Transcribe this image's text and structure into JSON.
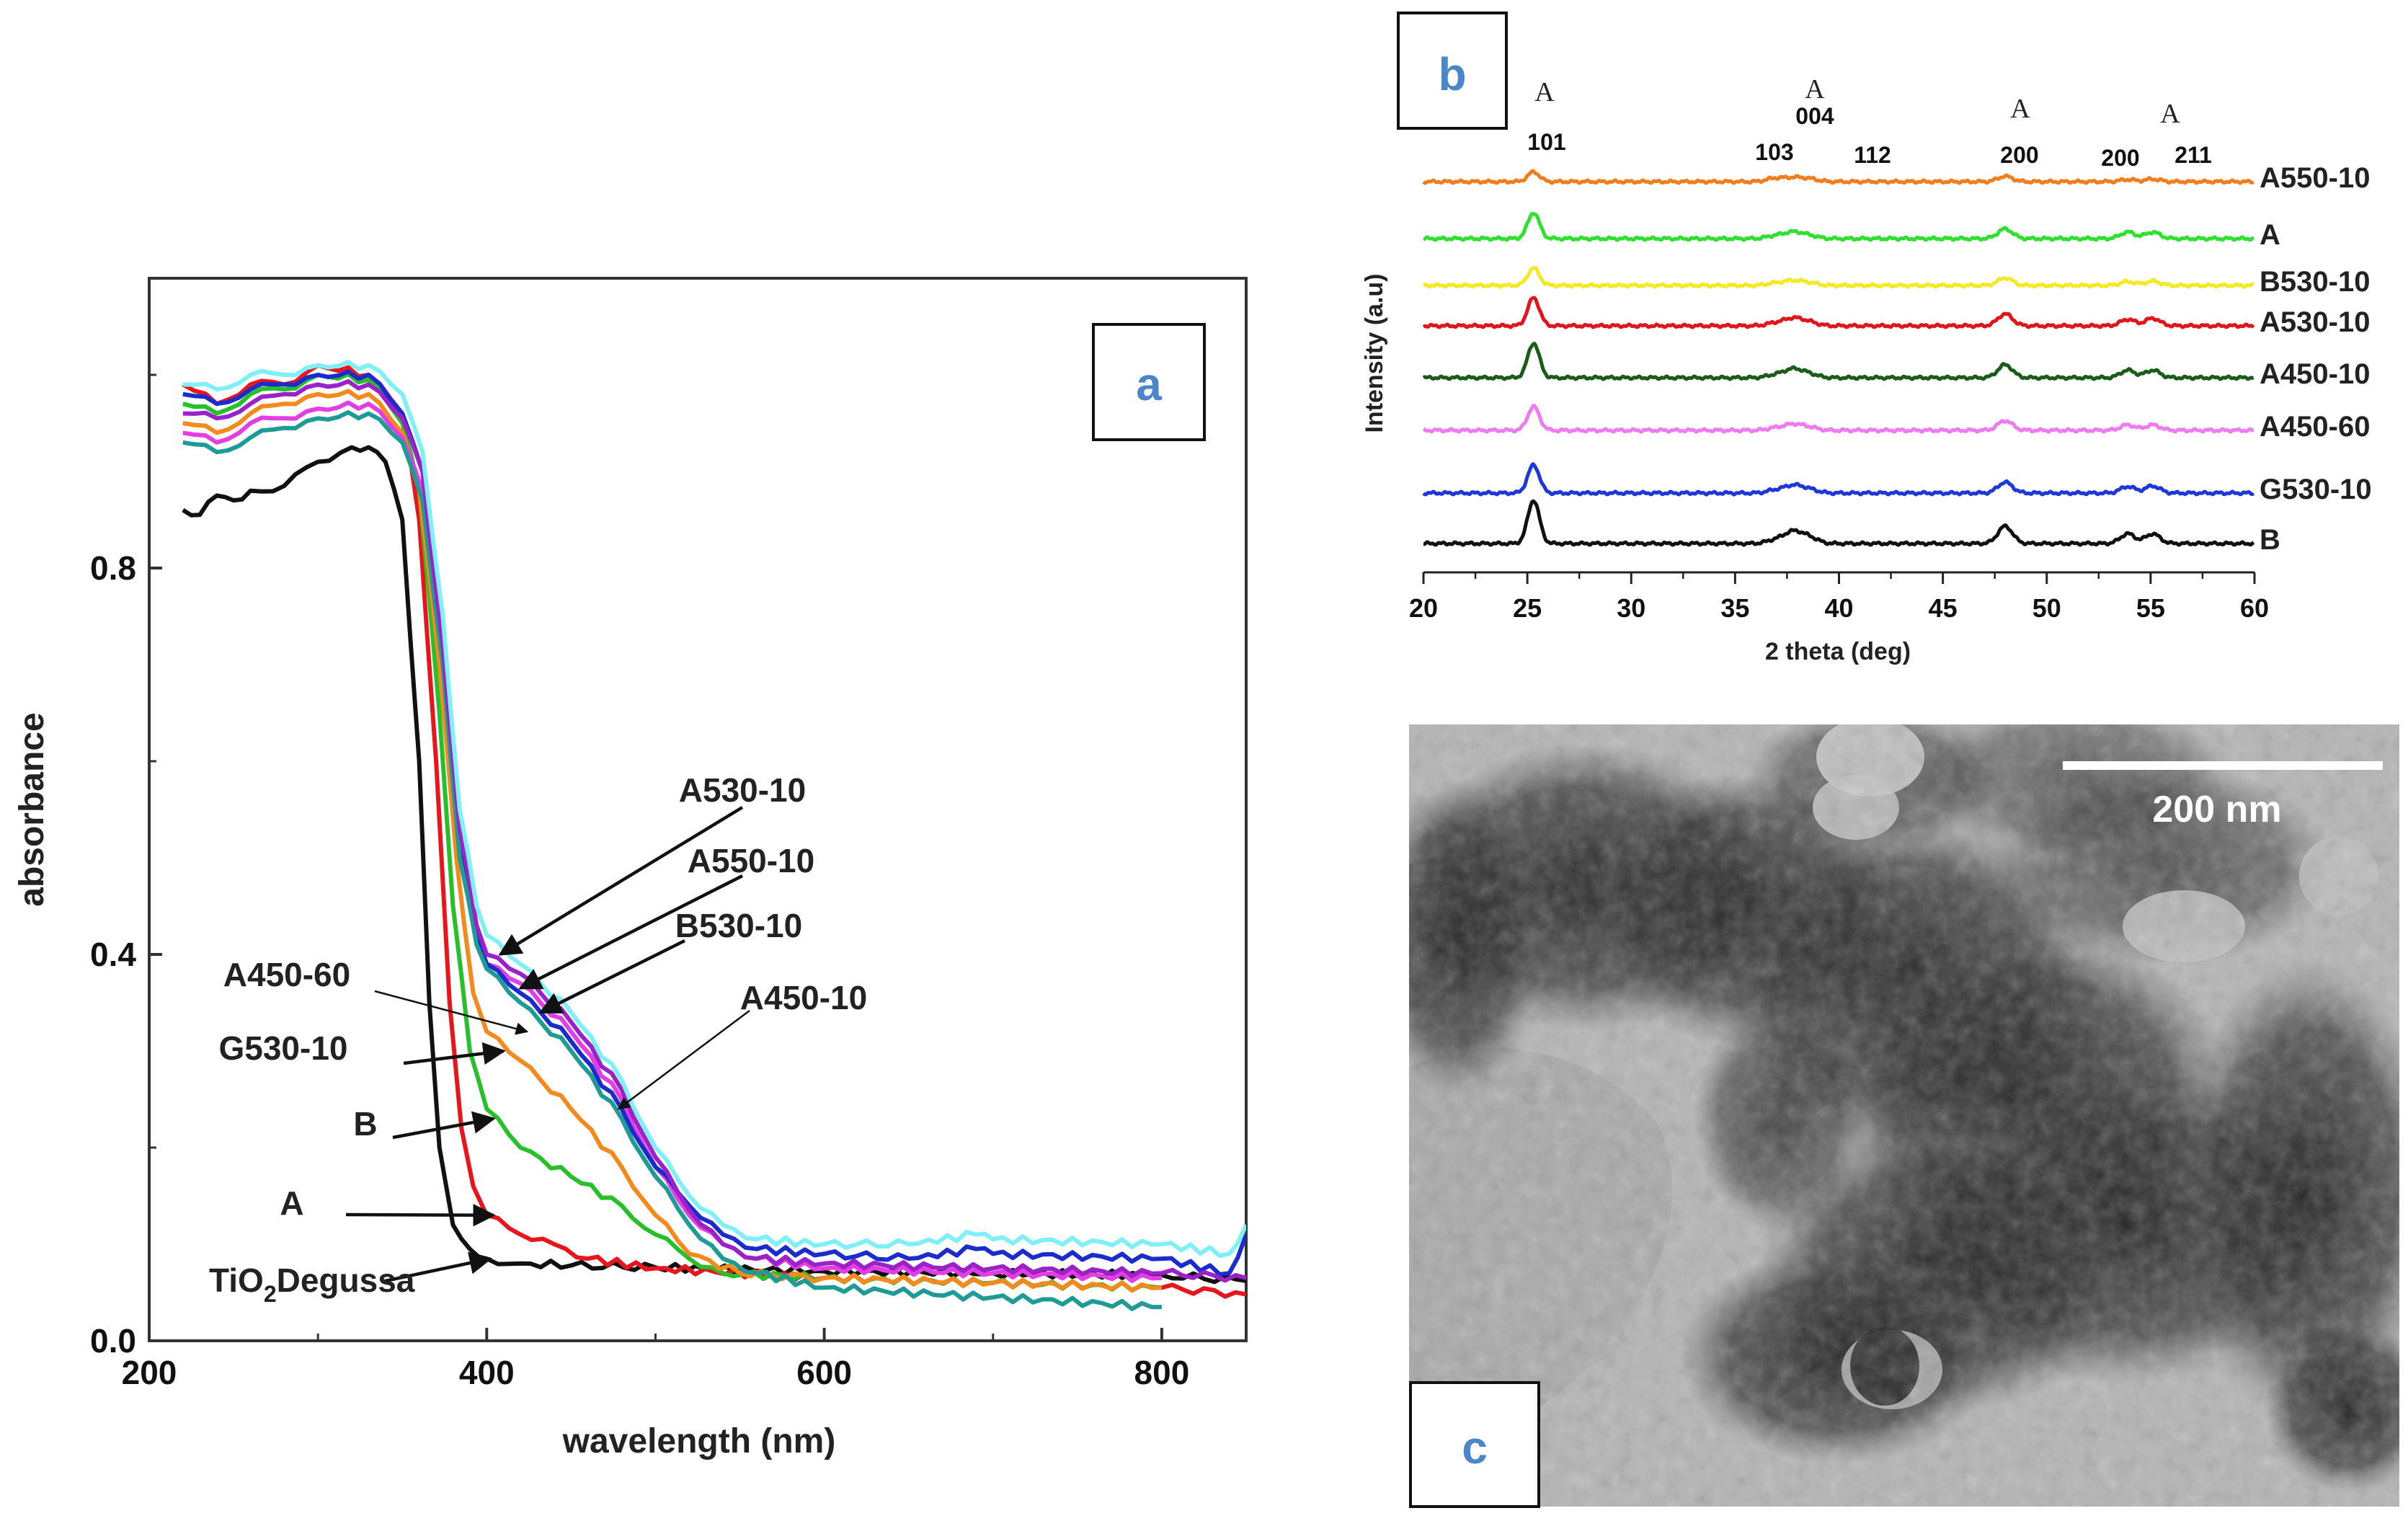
{
  "panels": {
    "a": {
      "letter": "a"
    },
    "b": {
      "letter": "b"
    },
    "c": {
      "letter": "c",
      "scale_label": "200 nm"
    }
  },
  "chart_data": [
    {
      "id": "uv-vis",
      "type": "line",
      "title": "",
      "xlabel": "wavelength (nm)",
      "ylabel": "absorbance",
      "xlim": [
        200,
        850
      ],
      "ylim": [
        0,
        1.1
      ],
      "xticks": [
        200,
        400,
        600,
        800
      ],
      "yticks": [
        0.0,
        0.4,
        0.8
      ],
      "ytick_labels": [
        "0.0",
        "0.4",
        "0.8"
      ],
      "series": [
        {
          "name": "TiO2Degussa",
          "color": "#111111",
          "points": [
            [
              220,
              0.86
            ],
            [
              230,
              0.855
            ],
            [
              240,
              0.875
            ],
            [
              250,
              0.87
            ],
            [
              260,
              0.88
            ],
            [
              280,
              0.885
            ],
            [
              300,
              0.91
            ],
            [
              320,
              0.925
            ],
            [
              330,
              0.925
            ],
            [
              340,
              0.91
            ],
            [
              350,
              0.85
            ],
            [
              360,
              0.6
            ],
            [
              366,
              0.35
            ],
            [
              372,
              0.2
            ],
            [
              380,
              0.12
            ],
            [
              390,
              0.095
            ],
            [
              400,
              0.085
            ],
            [
              420,
              0.08
            ],
            [
              450,
              0.078
            ],
            [
              500,
              0.076
            ],
            [
              600,
              0.072
            ],
            [
              700,
              0.07
            ],
            [
              800,
              0.068
            ],
            [
              850,
              0.062
            ]
          ]
        },
        {
          "name": "A",
          "color": "#e8161c",
          "points": [
            [
              220,
              0.99
            ],
            [
              240,
              0.97
            ],
            [
              260,
              0.99
            ],
            [
              280,
              0.99
            ],
            [
              300,
              1.01
            ],
            [
              330,
              1.0
            ],
            [
              350,
              0.96
            ],
            [
              360,
              0.85
            ],
            [
              370,
              0.6
            ],
            [
              378,
              0.35
            ],
            [
              385,
              0.22
            ],
            [
              392,
              0.16
            ],
            [
              400,
              0.13
            ],
            [
              420,
              0.11
            ],
            [
              440,
              0.1
            ],
            [
              460,
              0.085
            ],
            [
              500,
              0.075
            ],
            [
              600,
              0.065
            ],
            [
              700,
              0.06
            ],
            [
              800,
              0.055
            ],
            [
              850,
              0.048
            ]
          ]
        },
        {
          "name": "B",
          "color": "#27c02a",
          "points": [
            [
              220,
              0.97
            ],
            [
              240,
              0.96
            ],
            [
              260,
              0.98
            ],
            [
              280,
              0.985
            ],
            [
              300,
              1.0
            ],
            [
              330,
              0.995
            ],
            [
              350,
              0.95
            ],
            [
              360,
              0.88
            ],
            [
              372,
              0.65
            ],
            [
              380,
              0.45
            ],
            [
              390,
              0.3
            ],
            [
              400,
              0.24
            ],
            [
              420,
              0.2
            ],
            [
              450,
              0.17
            ],
            [
              480,
              0.14
            ],
            [
              500,
              0.11
            ],
            [
              520,
              0.085
            ],
            [
              540,
              0.07
            ],
            [
              600,
              0.065
            ],
            [
              700,
              0.06
            ],
            [
              800,
              0.055
            ]
          ]
        },
        {
          "name": "G530-10",
          "color": "#f28a1c",
          "points": [
            [
              220,
              0.95
            ],
            [
              240,
              0.94
            ],
            [
              260,
              0.96
            ],
            [
              280,
              0.97
            ],
            [
              300,
              0.98
            ],
            [
              330,
              0.98
            ],
            [
              350,
              0.94
            ],
            [
              360,
              0.88
            ],
            [
              372,
              0.7
            ],
            [
              382,
              0.5
            ],
            [
              392,
              0.36
            ],
            [
              400,
              0.32
            ],
            [
              420,
              0.29
            ],
            [
              450,
              0.24
            ],
            [
              480,
              0.18
            ],
            [
              500,
              0.13
            ],
            [
              520,
              0.09
            ],
            [
              550,
              0.07
            ],
            [
              600,
              0.065
            ],
            [
              700,
              0.06
            ],
            [
              800,
              0.055
            ]
          ]
        },
        {
          "name": "A450-60",
          "color": "#e33ee3",
          "points": [
            [
              220,
              0.94
            ],
            [
              240,
              0.93
            ],
            [
              260,
              0.95
            ],
            [
              280,
              0.955
            ],
            [
              300,
              0.965
            ],
            [
              330,
              0.97
            ],
            [
              350,
              0.935
            ],
            [
              362,
              0.88
            ],
            [
              374,
              0.7
            ],
            [
              384,
              0.52
            ],
            [
              394,
              0.42
            ],
            [
              400,
              0.39
            ],
            [
              420,
              0.37
            ],
            [
              450,
              0.32
            ],
            [
              480,
              0.25
            ],
            [
              500,
              0.18
            ],
            [
              520,
              0.13
            ],
            [
              540,
              0.1
            ],
            [
              560,
              0.085
            ],
            [
              600,
              0.075
            ],
            [
              700,
              0.07
            ],
            [
              800,
              0.065
            ]
          ]
        },
        {
          "name": "A530-10",
          "color": "#1a2ccc",
          "points": [
            [
              220,
              0.98
            ],
            [
              240,
              0.97
            ],
            [
              260,
              0.985
            ],
            [
              280,
              0.99
            ],
            [
              300,
              1.0
            ],
            [
              330,
              1.0
            ],
            [
              350,
              0.96
            ],
            [
              362,
              0.9
            ],
            [
              374,
              0.72
            ],
            [
              384,
              0.52
            ],
            [
              394,
              0.42
            ],
            [
              400,
              0.39
            ],
            [
              420,
              0.36
            ],
            [
              450,
              0.31
            ],
            [
              480,
              0.24
            ],
            [
              500,
              0.18
            ],
            [
              520,
              0.14
            ],
            [
              540,
              0.11
            ],
            [
              560,
              0.095
            ],
            [
              600,
              0.09
            ],
            [
              650,
              0.085
            ],
            [
              690,
              0.095
            ],
            [
              700,
              0.09
            ],
            [
              800,
              0.085
            ],
            [
              840,
              0.07
            ],
            [
              850,
              0.11
            ]
          ]
        },
        {
          "name": "A550-10",
          "color": "#1f9b96",
          "points": [
            [
              220,
              0.93
            ],
            [
              240,
              0.92
            ],
            [
              260,
              0.935
            ],
            [
              280,
              0.945
            ],
            [
              300,
              0.955
            ],
            [
              330,
              0.96
            ],
            [
              350,
              0.93
            ],
            [
              362,
              0.87
            ],
            [
              374,
              0.7
            ],
            [
              384,
              0.5
            ],
            [
              394,
              0.41
            ],
            [
              400,
              0.385
            ],
            [
              420,
              0.35
            ],
            [
              450,
              0.3
            ],
            [
              480,
              0.23
            ],
            [
              500,
              0.17
            ],
            [
              520,
              0.12
            ],
            [
              540,
              0.085
            ],
            [
              560,
              0.07
            ],
            [
              600,
              0.055
            ],
            [
              700,
              0.045
            ],
            [
              800,
              0.035
            ]
          ]
        },
        {
          "name": "B530-10",
          "color": "#9a22c8",
          "points": [
            [
              220,
              0.96
            ],
            [
              240,
              0.955
            ],
            [
              260,
              0.97
            ],
            [
              280,
              0.98
            ],
            [
              300,
              0.99
            ],
            [
              330,
              0.99
            ],
            [
              350,
              0.955
            ],
            [
              362,
              0.9
            ],
            [
              374,
              0.72
            ],
            [
              384,
              0.53
            ],
            [
              394,
              0.43
            ],
            [
              400,
              0.4
            ],
            [
              420,
              0.38
            ],
            [
              450,
              0.33
            ],
            [
              480,
              0.26
            ],
            [
              500,
              0.19
            ],
            [
              520,
              0.135
            ],
            [
              540,
              0.1
            ],
            [
              560,
              0.085
            ],
            [
              600,
              0.08
            ],
            [
              700,
              0.075
            ],
            [
              800,
              0.07
            ],
            [
              850,
              0.065
            ]
          ]
        },
        {
          "name": "A450-10",
          "color": "#7ff0f8",
          "points": [
            [
              220,
              0.99
            ],
            [
              240,
              0.985
            ],
            [
              260,
              1.0
            ],
            [
              280,
              1.0
            ],
            [
              300,
              1.01
            ],
            [
              330,
              1.01
            ],
            [
              350,
              0.98
            ],
            [
              362,
              0.92
            ],
            [
              374,
              0.75
            ],
            [
              384,
              0.55
            ],
            [
              394,
              0.45
            ],
            [
              400,
              0.42
            ],
            [
              420,
              0.39
            ],
            [
              450,
              0.34
            ],
            [
              480,
              0.27
            ],
            [
              500,
              0.2
            ],
            [
              520,
              0.15
            ],
            [
              540,
              0.12
            ],
            [
              560,
              0.105
            ],
            [
              600,
              0.1
            ],
            [
              650,
              0.1
            ],
            [
              690,
              0.11
            ],
            [
              700,
              0.105
            ],
            [
              800,
              0.1
            ],
            [
              840,
              0.09
            ],
            [
              850,
              0.12
            ]
          ]
        }
      ],
      "annotations": [
        {
          "text": "A530-10",
          "target_x": 408,
          "target_y": 0.4
        },
        {
          "text": "A550-10",
          "target_x": 420,
          "target_y": 0.365
        },
        {
          "text": "B530-10",
          "target_x": 432,
          "target_y": 0.34
        },
        {
          "text": "A450-60",
          "target_x": 424,
          "target_y": 0.32
        },
        {
          "text": "A450-10",
          "target_x": 478,
          "target_y": 0.24
        },
        {
          "text": "G530-10",
          "target_x": 410,
          "target_y": 0.3
        },
        {
          "text": "B",
          "target_x": 404,
          "target_y": 0.23
        },
        {
          "text": "A",
          "target_x": 404,
          "target_y": 0.13
        },
        {
          "text_main": "TiO",
          "text_sub": "2",
          "text_rest": "Degussa",
          "target_x": 402,
          "target_y": 0.085
        }
      ]
    },
    {
      "id": "xrd",
      "type": "line",
      "title": "",
      "xlabel": "2 theta (deg)",
      "ylabel": "Intensity (a.u)",
      "xlim": [
        20,
        60
      ],
      "xticks": [
        20,
        25,
        30,
        35,
        40,
        45,
        50,
        55,
        60
      ],
      "baseline_order_top_to_bottom": [
        "A550-10",
        "A",
        "B530-10",
        "A530-10",
        "A450-10",
        "A450-60",
        "G530-10",
        "B"
      ],
      "peaks": [
        {
          "pos": 25.3,
          "hkl": "101",
          "label": "A"
        },
        {
          "pos": 36.9,
          "hkl": "103"
        },
        {
          "pos": 37.8,
          "hkl": "004",
          "label": "A"
        },
        {
          "pos": 38.6,
          "hkl": "112"
        },
        {
          "pos": 48.0,
          "hkl": "200",
          "label": "A"
        },
        {
          "pos": 53.9,
          "hkl": "200"
        },
        {
          "pos": 55.1,
          "hkl": "211",
          "label": "A"
        }
      ],
      "hkl_labels": [
        "101",
        "103",
        "004",
        "112",
        "200",
        "200",
        "211"
      ],
      "phase_labels": [
        "A",
        "A",
        "A",
        "A"
      ],
      "series": [
        {
          "name": "A550-10",
          "color": "#f07d1e",
          "peak_heights": [
            0.45,
            0.15,
            0.18,
            0.12,
            0.25,
            0.1,
            0.12
          ]
        },
        {
          "name": "A",
          "color": "#2fe02f",
          "peak_heights": [
            1.2,
            0.12,
            0.3,
            0.12,
            0.45,
            0.3,
            0.3
          ]
        },
        {
          "name": "B530-10",
          "color": "#f2ea24",
          "peak_heights": [
            0.8,
            0.1,
            0.22,
            0.1,
            0.35,
            0.18,
            0.2
          ]
        },
        {
          "name": "A530-10",
          "color": "#e0161c",
          "peak_heights": [
            1.3,
            0.12,
            0.35,
            0.15,
            0.55,
            0.3,
            0.35
          ]
        },
        {
          "name": "A450-10",
          "color": "#1a5c1a",
          "peak_heights": [
            1.6,
            0.12,
            0.4,
            0.15,
            0.6,
            0.35,
            0.35
          ]
        },
        {
          "name": "A450-60",
          "color": "#f07af0",
          "peak_heights": [
            1.1,
            0.1,
            0.28,
            0.12,
            0.45,
            0.25,
            0.25
          ]
        },
        {
          "name": "G530-10",
          "color": "#1c38d8",
          "peak_heights": [
            1.3,
            0.12,
            0.35,
            0.15,
            0.5,
            0.3,
            0.33
          ]
        },
        {
          "name": "B",
          "color": "#111111",
          "peak_heights": [
            2.0,
            0.15,
            0.55,
            0.25,
            0.8,
            0.45,
            0.45
          ]
        }
      ]
    }
  ]
}
